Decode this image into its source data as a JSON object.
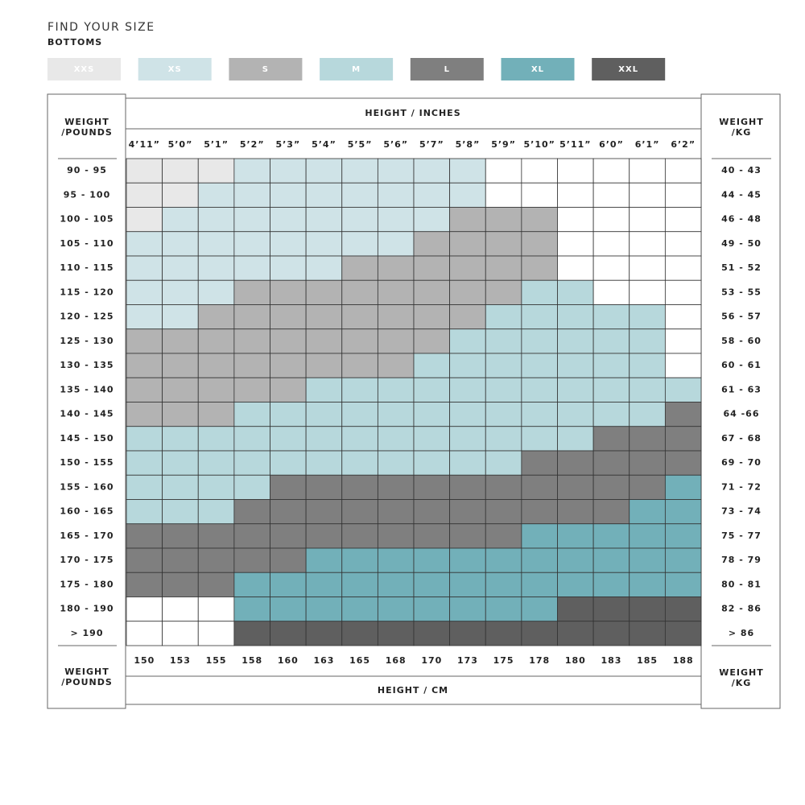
{
  "header": {
    "title": "FIND YOUR SIZE",
    "subtitle": "BOTTOMS"
  },
  "legend": [
    {
      "label": "XXS",
      "color": "#e8e8e8"
    },
    {
      "label": "XS",
      "color": "#cfe3e7"
    },
    {
      "label": "S",
      "color": "#b3b3b3"
    },
    {
      "label": "M",
      "color": "#b7d8dc"
    },
    {
      "label": "L",
      "color": "#7f7f7f"
    },
    {
      "label": "XL",
      "color": "#72b0b9"
    },
    {
      "label": "XXL",
      "color": "#5f5f5f"
    }
  ],
  "height_inches": {
    "title": "HEIGHT / INCHES",
    "labels": [
      "4’11”",
      "5’0”",
      "5’1”",
      "5’2”",
      "5’3”",
      "5’4”",
      "5’5”",
      "5’6”",
      "5’7”",
      "5’8”",
      "5’9”",
      "5’10”",
      "5’11”",
      "6’0”",
      "6’1”",
      "6’2”"
    ]
  },
  "height_cm": {
    "title": "HEIGHT / CM",
    "labels": [
      "150",
      "153",
      "155",
      "158",
      "160",
      "163",
      "165",
      "168",
      "170",
      "173",
      "175",
      "178",
      "180",
      "183",
      "185",
      "188"
    ]
  },
  "weight_pounds": {
    "title": [
      "WEIGHT",
      "/POUNDS"
    ],
    "labels": [
      "90 - 95",
      "95 - 100",
      "100 - 105",
      "105 - 110",
      "110 - 115",
      "115 - 120",
      "120 - 125",
      "125 - 130",
      "130 - 135",
      "135 - 140",
      "140 - 145",
      "145 - 150",
      "150 - 155",
      "155 - 160",
      "160 - 165",
      "165 - 170",
      "170 - 175",
      "175 - 180",
      "180 - 190",
      "> 190"
    ]
  },
  "weight_kg": {
    "title": [
      "WEIGHT",
      "/KG"
    ],
    "labels": [
      "40 - 43",
      "44 - 45",
      "46 - 48",
      "49 - 50",
      "51 - 52",
      "53 - 55",
      "56 - 57",
      "58 - 60",
      "60 - 61",
      "61 - 63",
      "64 -66",
      "67 - 68",
      "69 - 70",
      "71 - 72",
      "73 - 74",
      "75 - 77",
      "78 - 79",
      "80 - 81",
      "82 - 86",
      "> 86"
    ]
  },
  "grid": [
    [
      "XXS",
      "XXS",
      "XXS",
      "XS",
      "XS",
      "XS",
      "XS",
      "XS",
      "XS",
      "XS",
      null,
      null,
      null,
      null,
      null,
      null
    ],
    [
      "XXS",
      "XXS",
      "XS",
      "XS",
      "XS",
      "XS",
      "XS",
      "XS",
      "XS",
      "XS",
      null,
      null,
      null,
      null,
      null,
      null
    ],
    [
      "XXS",
      "XS",
      "XS",
      "XS",
      "XS",
      "XS",
      "XS",
      "XS",
      "XS",
      "S",
      "S",
      "S",
      null,
      null,
      null,
      null
    ],
    [
      "XS",
      "XS",
      "XS",
      "XS",
      "XS",
      "XS",
      "XS",
      "XS",
      "S",
      "S",
      "S",
      "S",
      null,
      null,
      null,
      null
    ],
    [
      "XS",
      "XS",
      "XS",
      "XS",
      "XS",
      "XS",
      "S",
      "S",
      "S",
      "S",
      "S",
      "S",
      null,
      null,
      null,
      null
    ],
    [
      "XS",
      "XS",
      "XS",
      "S",
      "S",
      "S",
      "S",
      "S",
      "S",
      "S",
      "S",
      "M",
      "M",
      null,
      null,
      null
    ],
    [
      "XS",
      "XS",
      "S",
      "S",
      "S",
      "S",
      "S",
      "S",
      "S",
      "S",
      "M",
      "M",
      "M",
      "M",
      "M",
      null
    ],
    [
      "S",
      "S",
      "S",
      "S",
      "S",
      "S",
      "S",
      "S",
      "S",
      "M",
      "M",
      "M",
      "M",
      "M",
      "M",
      null
    ],
    [
      "S",
      "S",
      "S",
      "S",
      "S",
      "S",
      "S",
      "S",
      "M",
      "M",
      "M",
      "M",
      "M",
      "M",
      "M",
      null
    ],
    [
      "S",
      "S",
      "S",
      "S",
      "S",
      "M",
      "M",
      "M",
      "M",
      "M",
      "M",
      "M",
      "M",
      "M",
      "M",
      "M"
    ],
    [
      "S",
      "S",
      "S",
      "M",
      "M",
      "M",
      "M",
      "M",
      "M",
      "M",
      "M",
      "M",
      "M",
      "M",
      "M",
      "L"
    ],
    [
      "M",
      "M",
      "M",
      "M",
      "M",
      "M",
      "M",
      "M",
      "M",
      "M",
      "M",
      "M",
      "M",
      "L",
      "L",
      "L"
    ],
    [
      "M",
      "M",
      "M",
      "M",
      "M",
      "M",
      "M",
      "M",
      "M",
      "M",
      "M",
      "L",
      "L",
      "L",
      "L",
      "L"
    ],
    [
      "M",
      "M",
      "M",
      "M",
      "L",
      "L",
      "L",
      "L",
      "L",
      "L",
      "L",
      "L",
      "L",
      "L",
      "L",
      "XL"
    ],
    [
      "M",
      "M",
      "M",
      "L",
      "L",
      "L",
      "L",
      "L",
      "L",
      "L",
      "L",
      "L",
      "L",
      "L",
      "XL",
      "XL"
    ],
    [
      "L",
      "L",
      "L",
      "L",
      "L",
      "L",
      "L",
      "L",
      "L",
      "L",
      "L",
      "XL",
      "XL",
      "XL",
      "XL",
      "XL"
    ],
    [
      "L",
      "L",
      "L",
      "L",
      "L",
      "XL",
      "XL",
      "XL",
      "XL",
      "XL",
      "XL",
      "XL",
      "XL",
      "XL",
      "XL",
      "XL"
    ],
    [
      "L",
      "L",
      "L",
      "XL",
      "XL",
      "XL",
      "XL",
      "XL",
      "XL",
      "XL",
      "XL",
      "XL",
      "XL",
      "XL",
      "XL",
      "XL"
    ],
    [
      null,
      null,
      null,
      "XL",
      "XL",
      "XL",
      "XL",
      "XL",
      "XL",
      "XL",
      "XL",
      "XL",
      "XXL",
      "XXL",
      "XXL",
      "XXL"
    ],
    [
      null,
      null,
      null,
      "XXL",
      "XXL",
      "XXL",
      "XXL",
      "XXL",
      "XXL",
      "XXL",
      "XXL",
      "XXL",
      "XXL",
      "XXL",
      "XXL",
      "XXL"
    ]
  ]
}
